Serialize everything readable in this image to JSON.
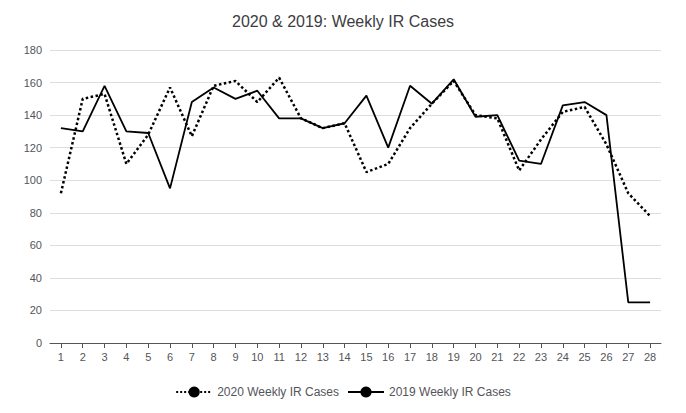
{
  "chart_data": {
    "type": "line",
    "title": "2020 & 2019: Weekly IR Cases",
    "x": [
      1,
      2,
      3,
      4,
      5,
      6,
      7,
      8,
      9,
      10,
      11,
      12,
      13,
      14,
      15,
      16,
      17,
      18,
      19,
      20,
      21,
      22,
      23,
      24,
      25,
      26,
      27,
      28
    ],
    "series": [
      {
        "name": "2020 Weekly IR Cases",
        "color": "#000000",
        "line_style": "dotted",
        "values": [
          92,
          150,
          153,
          110,
          128,
          157,
          127,
          158,
          161,
          148,
          163,
          138,
          132,
          135,
          105,
          110,
          132,
          147,
          161,
          140,
          138,
          106,
          125,
          142,
          145,
          122,
          92,
          78
        ]
      },
      {
        "name": "2019 Weekly IR Cases",
        "color": "#000000",
        "line_style": "solid",
        "values": [
          132,
          130,
          158,
          130,
          129,
          95,
          148,
          157,
          150,
          155,
          138,
          138,
          132,
          135,
          152,
          120,
          158,
          147,
          162,
          139,
          140,
          112,
          110,
          146,
          148,
          140,
          25,
          25
        ]
      }
    ],
    "xlim": [
      0.5,
      28.5
    ],
    "xticks": [
      1,
      2,
      3,
      4,
      5,
      6,
      7,
      8,
      9,
      10,
      11,
      12,
      13,
      14,
      15,
      16,
      17,
      18,
      19,
      20,
      21,
      22,
      23,
      24,
      25,
      26,
      27,
      28
    ],
    "ylim": [
      0,
      180
    ],
    "yticks": [
      0,
      20,
      40,
      60,
      80,
      100,
      120,
      140,
      160,
      180
    ],
    "grid": true,
    "legend": "bottom"
  }
}
